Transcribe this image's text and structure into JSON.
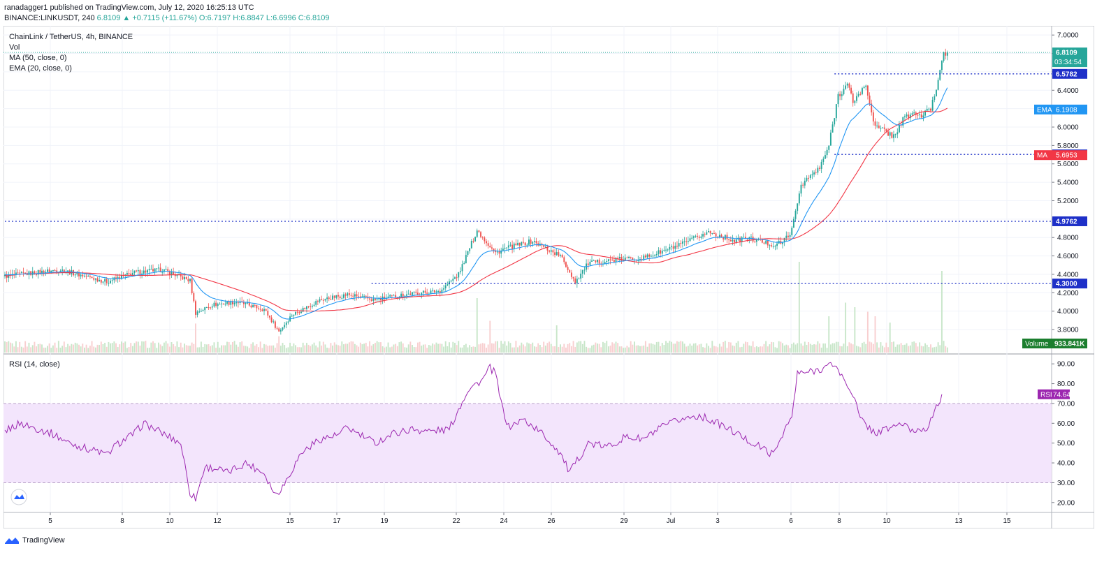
{
  "header": {
    "published": "ranadagger1 published on TradingView.com, July 12, 2020 16:25:13 UTC",
    "symbol_line": "BINANCE:LINKUSDT, 240",
    "ohlc": "6.8109 ▲ +0.7115 (+11.67%) O:6.7197 H:6.8847 L:6.6996 C:6.8109"
  },
  "legend": {
    "title": "ChainLink / TetherUS, 4h, BINANCE",
    "vol": "Vol",
    "ma": "MA (50, close, 0)",
    "ema": "EMA (20, close, 0)",
    "rsi": "RSI (14, close)"
  },
  "footer": {
    "brand": "TradingView"
  },
  "colors": {
    "up": "#26a69a",
    "down": "#ef5350",
    "ema": "#2196f3",
    "ma": "#f23645",
    "rsi": "#9c27b0",
    "rsi_band": "#f3e5fc",
    "level": "#1e30c8",
    "vol_label": "#1b7e2e"
  },
  "chart_data": [
    {
      "type": "candlestick",
      "title": "ChainLink / TetherUS, 4h, BINANCE",
      "ylim": [
        3.55,
        7.1
      ],
      "yticks": [
        "7.0000",
        "6.8000",
        "6.6000",
        "6.4000",
        "6.2000",
        "6.0000",
        "5.8000",
        "5.6000",
        "5.4000",
        "5.2000",
        "5.0000",
        "4.8000",
        "4.6000",
        "4.4000",
        "4.2000",
        "4.0000",
        "3.8000"
      ],
      "xticks": [
        "5",
        "8",
        "10",
        "12",
        "15",
        "17",
        "19",
        "22",
        "24",
        "26",
        "29",
        "Jul",
        "3",
        "6",
        "8",
        "10",
        "13",
        "15"
      ],
      "anchors": [
        [
          0,
          4.38
        ],
        [
          30,
          4.45
        ],
        [
          55,
          4.32
        ],
        [
          70,
          4.42
        ],
        [
          85,
          4.45
        ],
        [
          100,
          4.33
        ],
        [
          103,
          3.98
        ],
        [
          112,
          4.07
        ],
        [
          125,
          4.1
        ],
        [
          140,
          4.02
        ],
        [
          148,
          3.78
        ],
        [
          155,
          3.96
        ],
        [
          170,
          4.12
        ],
        [
          185,
          4.18
        ],
        [
          200,
          4.12
        ],
        [
          215,
          4.18
        ],
        [
          235,
          4.22
        ],
        [
          245,
          4.4
        ],
        [
          255,
          4.88
        ],
        [
          265,
          4.63
        ],
        [
          270,
          4.68
        ],
        [
          285,
          4.76
        ],
        [
          300,
          4.6
        ],
        [
          308,
          4.32
        ],
        [
          315,
          4.52
        ],
        [
          330,
          4.56
        ],
        [
          345,
          4.58
        ],
        [
          365,
          4.72
        ],
        [
          380,
          4.86
        ],
        [
          395,
          4.76
        ],
        [
          400,
          4.8
        ],
        [
          415,
          4.72
        ],
        [
          420,
          4.75
        ],
        [
          425,
          4.88
        ],
        [
          430,
          5.38
        ],
        [
          440,
          5.55
        ],
        [
          445,
          5.8
        ],
        [
          450,
          6.35
        ],
        [
          455,
          6.46
        ],
        [
          458,
          6.28
        ],
        [
          465,
          6.45
        ],
        [
          470,
          6.0
        ],
        [
          475,
          5.96
        ],
        [
          480,
          5.9
        ],
        [
          485,
          6.08
        ],
        [
          490,
          6.15
        ],
        [
          495,
          6.12
        ],
        [
          500,
          6.2
        ],
        [
          504,
          6.5
        ],
        [
          506,
          6.75
        ],
        [
          507,
          6.8109
        ]
      ],
      "candles": [
        [
          0,
          4.3
        ],
        [
          5,
          4.42
        ],
        [
          10,
          4.44
        ],
        [
          15,
          4.38
        ],
        [
          20,
          4.46
        ],
        [
          25,
          4.48
        ],
        [
          30,
          4.43
        ],
        [
          40,
          4.39
        ],
        [
          50,
          4.35
        ],
        [
          55,
          4.25
        ],
        [
          60,
          4.37
        ],
        [
          66,
          4.42
        ],
        [
          72,
          4.47
        ],
        [
          80,
          4.45
        ],
        [
          90,
          4.4
        ],
        [
          100,
          4.3
        ],
        [
          102,
          4.03
        ],
        [
          108,
          3.96
        ],
        [
          115,
          4.12
        ],
        [
          125,
          4.06
        ],
        [
          135,
          4.1
        ],
        [
          142,
          4.02
        ],
        [
          148,
          3.77
        ],
        [
          152,
          3.91
        ],
        [
          158,
          3.96
        ],
        [
          165,
          4.05
        ],
        [
          175,
          4.09
        ],
        [
          182,
          4.12
        ],
        [
          190,
          4.16
        ],
        [
          200,
          4.15
        ],
        [
          212,
          4.12
        ],
        [
          222,
          4.17
        ],
        [
          238,
          4.19
        ],
        [
          248,
          4.38
        ],
        [
          255,
          4.87
        ],
        [
          260,
          4.86
        ],
        [
          265,
          4.55
        ],
        [
          272,
          4.77
        ],
        [
          280,
          4.75
        ],
        [
          288,
          4.72
        ],
        [
          298,
          4.58
        ],
        [
          302,
          4.48
        ],
        [
          308,
          4.36
        ],
        [
          312,
          4.44
        ],
        [
          318,
          4.54
        ],
        [
          326,
          4.55
        ],
        [
          338,
          4.62
        ],
        [
          346,
          4.56
        ],
        [
          355,
          4.64
        ],
        [
          362,
          4.74
        ],
        [
          370,
          4.8
        ],
        [
          378,
          4.82
        ],
        [
          386,
          4.86
        ],
        [
          390,
          4.8
        ],
        [
          398,
          4.76
        ],
        [
          406,
          4.73
        ],
        [
          414,
          4.69
        ],
        [
          420,
          4.77
        ],
        [
          425,
          4.89
        ],
        [
          429,
          5.38
        ],
        [
          433,
          5.55
        ],
        [
          438,
          5.58
        ],
        [
          441,
          5.66
        ],
        [
          444,
          5.85
        ],
        [
          448,
          6.25
        ],
        [
          452,
          6.43
        ],
        [
          456,
          6.44
        ],
        [
          459,
          6.12
        ],
        [
          463,
          6.4
        ],
        [
          466,
          6.14
        ],
        [
          470,
          5.95
        ],
        [
          474,
          5.87
        ],
        [
          478,
          5.88
        ],
        [
          482,
          6.03
        ],
        [
          486,
          6.1
        ],
        [
          490,
          6.16
        ],
        [
          494,
          6.1
        ],
        [
          498,
          6.08
        ],
        [
          502,
          6.18
        ],
        [
          504,
          6.5
        ],
        [
          506,
          6.75
        ],
        [
          507,
          6.8109
        ]
      ],
      "volume_spikes": [
        [
          103,
          0.32
        ],
        [
          148,
          0.18
        ],
        [
          255,
          0.6
        ],
        [
          262,
          0.35
        ],
        [
          298,
          0.3
        ],
        [
          429,
          1.0
        ],
        [
          445,
          0.4
        ],
        [
          454,
          0.55
        ],
        [
          459,
          0.5
        ],
        [
          466,
          0.45
        ],
        [
          470,
          0.4
        ],
        [
          478,
          0.33
        ],
        [
          506,
          0.9
        ]
      ],
      "volume_last": "933.841K",
      "price_levels": [
        {
          "value": 6.5782,
          "label": "6.5782",
          "from_index": 448
        },
        {
          "value": 5.7029,
          "label": "5.7029",
          "from_index": 448
        },
        {
          "value": 4.9762,
          "label": "4.9762",
          "from_index": 0
        },
        {
          "value": 4.3,
          "label": "4.3000",
          "from_index": 198
        }
      ],
      "last_price": {
        "value": 6.8109,
        "label": "6.8109",
        "countdown": "03:34:54"
      },
      "ema_last": {
        "value": 6.1908,
        "label": "6.1908",
        "name": "EMA"
      },
      "ma_last": {
        "value": 5.6953,
        "label": "5.6953",
        "name": "MA"
      }
    },
    {
      "type": "line",
      "title": "RSI (14, close)",
      "ylim": [
        15,
        95
      ],
      "yticks": [
        "90.00",
        "80.00",
        "70.00",
        "60.00",
        "50.00",
        "40.00",
        "30.00",
        "20.00"
      ],
      "band": [
        30,
        70
      ],
      "rsi_anchors": [
        [
          0,
          56
        ],
        [
          8,
          60
        ],
        [
          15,
          58
        ],
        [
          25,
          55
        ],
        [
          35,
          50
        ],
        [
          45,
          47
        ],
        [
          50,
          46
        ],
        [
          55,
          44
        ],
        [
          60,
          49
        ],
        [
          70,
          55
        ],
        [
          75,
          60
        ],
        [
          85,
          55
        ],
        [
          95,
          50
        ],
        [
          100,
          25
        ],
        [
          103,
          22
        ],
        [
          108,
          38
        ],
        [
          115,
          37
        ],
        [
          120,
          35
        ],
        [
          130,
          40
        ],
        [
          140,
          35
        ],
        [
          146,
          24
        ],
        [
          150,
          28
        ],
        [
          160,
          45
        ],
        [
          170,
          52
        ],
        [
          180,
          54
        ],
        [
          185,
          58
        ],
        [
          190,
          55
        ],
        [
          200,
          50
        ],
        [
          210,
          55
        ],
        [
          220,
          57
        ],
        [
          230,
          56
        ],
        [
          240,
          57
        ],
        [
          250,
          77
        ],
        [
          258,
          82
        ],
        [
          262,
          88
        ],
        [
          265,
          85
        ],
        [
          268,
          70
        ],
        [
          272,
          58
        ],
        [
          280,
          62
        ],
        [
          290,
          55
        ],
        [
          300,
          45
        ],
        [
          305,
          35
        ],
        [
          315,
          50
        ],
        [
          325,
          48
        ],
        [
          335,
          53
        ],
        [
          345,
          52
        ],
        [
          355,
          58
        ],
        [
          365,
          62
        ],
        [
          375,
          64
        ],
        [
          385,
          60
        ],
        [
          395,
          55
        ],
        [
          400,
          52
        ],
        [
          410,
          47
        ],
        [
          415,
          44
        ],
        [
          420,
          55
        ],
        [
          425,
          63
        ],
        [
          428,
          85
        ],
        [
          435,
          86
        ],
        [
          442,
          88
        ],
        [
          448,
          90
        ],
        [
          453,
          82
        ],
        [
          458,
          75
        ],
        [
          462,
          62
        ],
        [
          470,
          55
        ],
        [
          476,
          57
        ],
        [
          484,
          60
        ],
        [
          490,
          56
        ],
        [
          498,
          58
        ],
        [
          502,
          65
        ],
        [
          506,
          74.64
        ]
      ],
      "last": {
        "value": 74.64,
        "label": "74.64",
        "name": "RSI"
      }
    }
  ]
}
